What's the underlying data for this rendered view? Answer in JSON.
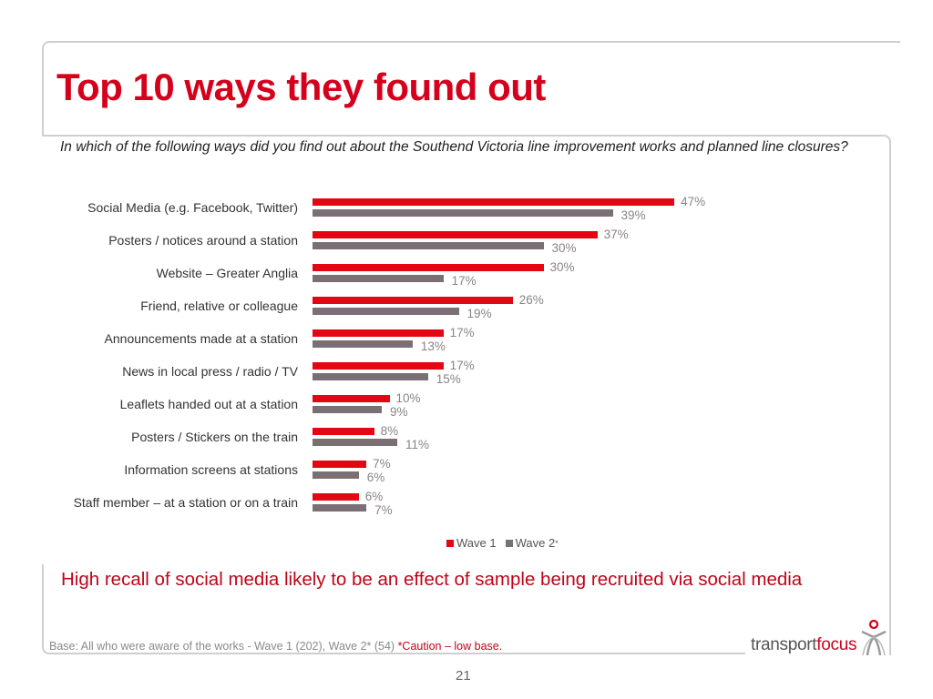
{
  "slide": {
    "title": "Top 10 ways they found out",
    "question": "In which of the following ways did you find out about the Southend Victoria line improvement works and planned line closures?",
    "finding": "High recall of social media likely to be an effect of sample being recruited via social media",
    "base_text": "Base: All who were aware of the works  - Wave 1 (202), Wave 2* (54) ",
    "caution_text": "*Caution – low base.",
    "page_number": "21",
    "logo": {
      "part1": "transport",
      "part2": "focus",
      "icon": "transportfocus-figure-icon"
    }
  },
  "colors": {
    "wave1": "#e30613",
    "wave2": "#7a6f74",
    "title": "#d5001c",
    "finding": "#c00418"
  },
  "legend": {
    "wave1_label": "Wave 1",
    "wave2_label": "Wave 2",
    "wave2_marker": "*"
  },
  "chart_data": {
    "type": "bar",
    "orientation": "horizontal",
    "title": "Top 10 ways they found out",
    "xlabel": "",
    "ylabel": "",
    "xlim": [
      0,
      50
    ],
    "grid": false,
    "legend_position": "bottom",
    "categories": [
      "Social Media (e.g. Facebook, Twitter)",
      "Posters / notices around a station",
      "Website – Greater Anglia",
      "Friend, relative or colleague",
      "Announcements made at a station",
      "News in local press / radio / TV",
      "Leaflets handed out at a station",
      "Posters / Stickers on the train",
      "Information screens at stations",
      "Staff member – at a station or on a train"
    ],
    "series": [
      {
        "name": "Wave 1",
        "values": [
          47,
          37,
          30,
          26,
          17,
          17,
          10,
          8,
          7,
          6
        ],
        "labels": [
          "47%",
          "37%",
          "30%",
          "26%",
          "17%",
          "17%",
          "10%",
          "8%",
          "7%",
          "6%"
        ]
      },
      {
        "name": "Wave 2*",
        "values": [
          39,
          30,
          17,
          19,
          13,
          15,
          9,
          11,
          6,
          7
        ],
        "labels": [
          "39%",
          "30%",
          "17%",
          "19%",
          "13%",
          "15%",
          "9%",
          "11%",
          "6%",
          "7%"
        ]
      }
    ]
  }
}
